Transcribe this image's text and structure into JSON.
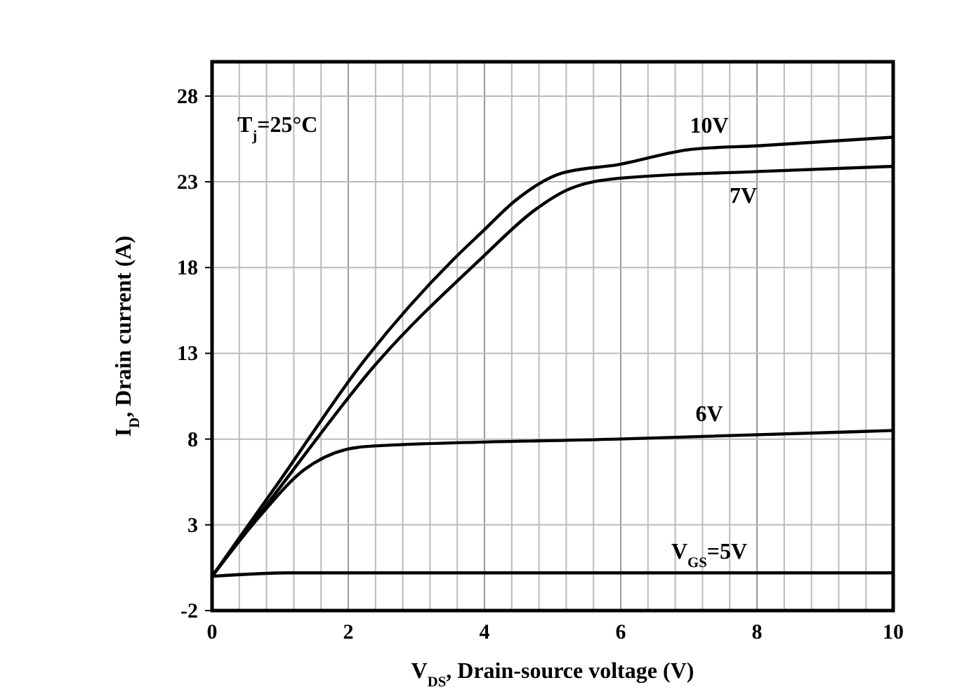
{
  "chart_data": {
    "type": "line",
    "xlabel": "V$_{DS}$, Drain-source voltage (V)",
    "ylabel": "I$_{D}$, Drain current (A)",
    "annotations": [
      "T$_{j}$=25°C"
    ],
    "xlim": [
      0,
      10
    ],
    "ylim": [
      -2,
      30
    ],
    "xticks": [
      0,
      {
        "value": 0.4,
        "label": null
      },
      {
        "value": 0.8,
        "label": null
      },
      {
        "value": 1.2,
        "label": null
      },
      {
        "value": 1.6,
        "label": null
      },
      2,
      {
        "value": 2.4,
        "label": null
      },
      {
        "value": 2.8,
        "label": null
      },
      {
        "value": 3.2,
        "label": null
      },
      {
        "value": 3.6,
        "label": null
      },
      4,
      {
        "value": 4.4,
        "label": null
      },
      {
        "value": 4.8,
        "label": null
      },
      {
        "value": 5.2,
        "label": null
      },
      {
        "value": 5.6,
        "label": null
      },
      6,
      {
        "value": 6.4,
        "label": null
      },
      {
        "value": 6.8,
        "label": null
      },
      {
        "value": 7.2,
        "label": null
      },
      {
        "value": 7.6,
        "label": null
      },
      8,
      {
        "value": 8.4,
        "label": null
      },
      {
        "value": 8.8,
        "label": null
      },
      {
        "value": 9.2,
        "label": null
      },
      {
        "value": 9.6,
        "label": null
      },
      10
    ],
    "yticks": [
      -2,
      3,
      8,
      13,
      18,
      23,
      28
    ],
    "grid": true,
    "line_style": "solid",
    "series": [
      {
        "name": "10V",
        "color": "#000000",
        "x": [
          0,
          1,
          2.18,
          3.55,
          3.97,
          4.45,
          5.13,
          5.96,
          7.05,
          8.02,
          10
        ],
        "values": [
          0,
          5.6,
          12.3,
          18.5,
          20.1,
          21.9,
          23.5,
          24.0,
          24.9,
          25.1,
          25.6
        ]
      },
      {
        "name": "7V",
        "color": "#000000",
        "x": [
          0,
          1,
          2.39,
          3.97,
          4.72,
          5.2,
          5.96,
          8.02,
          10
        ],
        "values": [
          0,
          5.2,
          12.3,
          18.6,
          21.3,
          22.5,
          23.2,
          23.6,
          23.9
        ]
      },
      {
        "name": "6V",
        "color": "#000000",
        "x": [
          0,
          0.7,
          1.35,
          1.97,
          2.39,
          5.96,
          10
        ],
        "values": [
          0,
          3.5,
          6.2,
          7.4,
          7.6,
          8.0,
          8.5
        ]
      },
      {
        "name": "V$_{GS}$=5V",
        "color": "#000000",
        "x": [
          0,
          1.15,
          10
        ],
        "values": [
          0,
          0.2,
          0.2
        ]
      }
    ]
  }
}
